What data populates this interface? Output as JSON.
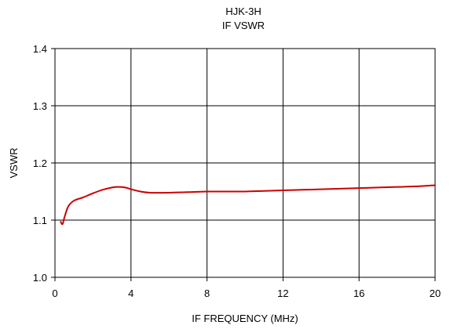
{
  "chart_data": {
    "type": "line",
    "title": "HJK-3H",
    "subtitle": "IF VSWR",
    "xlabel": "IF FREQUENCY (MHz)",
    "ylabel": "VSWR",
    "xlim": [
      0,
      20
    ],
    "ylim": [
      1.0,
      1.4
    ],
    "x_ticks": [
      0,
      4,
      8,
      12,
      16,
      20
    ],
    "y_ticks": [
      1.0,
      1.1,
      1.2,
      1.3,
      1.4
    ],
    "x_tick_labels": [
      "0",
      "4",
      "8",
      "12",
      "16",
      "20"
    ],
    "y_tick_labels": [
      "1.0",
      "1.1",
      "1.2",
      "1.3",
      "1.4"
    ],
    "grid": true,
    "series": [
      {
        "color": "#cc0000",
        "x": [
          0.3,
          0.4,
          0.5,
          0.7,
          1.0,
          1.5,
          2.0,
          2.5,
          3.0,
          3.3,
          3.7,
          4.0,
          4.5,
          5.0,
          6.0,
          7.0,
          8.0,
          9.0,
          10.0,
          11.0,
          12.0,
          13.0,
          14.0,
          15.0,
          16.0,
          17.0,
          18.0,
          19.0,
          20.0
        ],
        "y": [
          1.097,
          1.093,
          1.105,
          1.124,
          1.134,
          1.14,
          1.147,
          1.153,
          1.157,
          1.158,
          1.157,
          1.154,
          1.15,
          1.148,
          1.148,
          1.149,
          1.15,
          1.15,
          1.15,
          1.151,
          1.152,
          1.153,
          1.154,
          1.155,
          1.156,
          1.157,
          1.158,
          1.159,
          1.161
        ]
      }
    ]
  }
}
